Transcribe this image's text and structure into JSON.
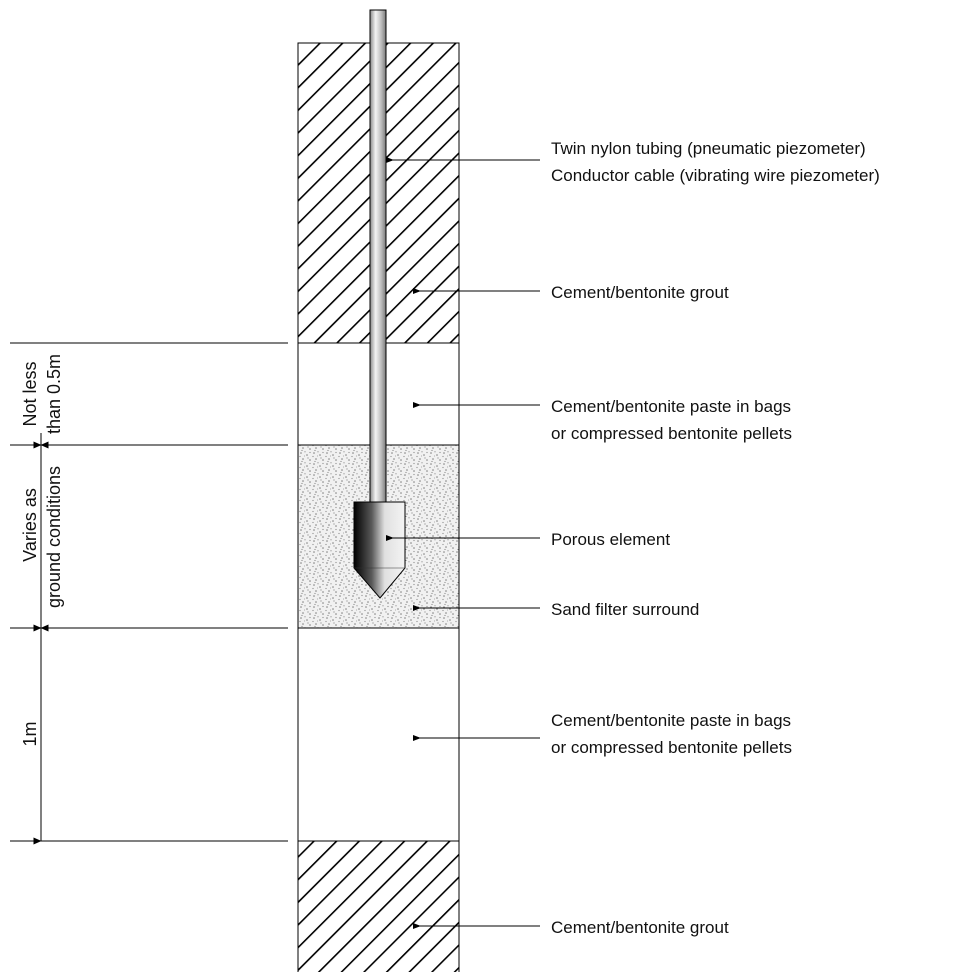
{
  "colors": {
    "line": "#000000",
    "background": "#ffffff",
    "sand_fill": "#f1f1f1",
    "sand_dots": "#7a7a7a"
  },
  "labels": {
    "tubing_line1": "Twin nylon tubing (pneumatic piezometer)",
    "tubing_line2": "Conductor cable (vibrating wire piezometer)",
    "grout_upper": "Cement/bentonite grout",
    "paste_upper_line1": "Cement/bentonite paste in bags",
    "paste_upper_line2": "or compressed bentonite pellets",
    "porous_element": "Porous element",
    "sand_filter": "Sand filter surround",
    "paste_lower_line1": "Cement/bentonite paste in bags",
    "paste_lower_line2": "or compressed bentonite pellets",
    "grout_lower": "Cement/bentonite grout"
  },
  "dimensions": {
    "seal_line1": "Not less",
    "seal_line2": "than 0.5m",
    "filter_line1": "Varies as",
    "filter_line2": "ground conditions",
    "lower_seal": "1m"
  },
  "icons": {
    "porous_element": "piezometer-tip-icon",
    "leader_arrow": "arrow-left-icon"
  }
}
